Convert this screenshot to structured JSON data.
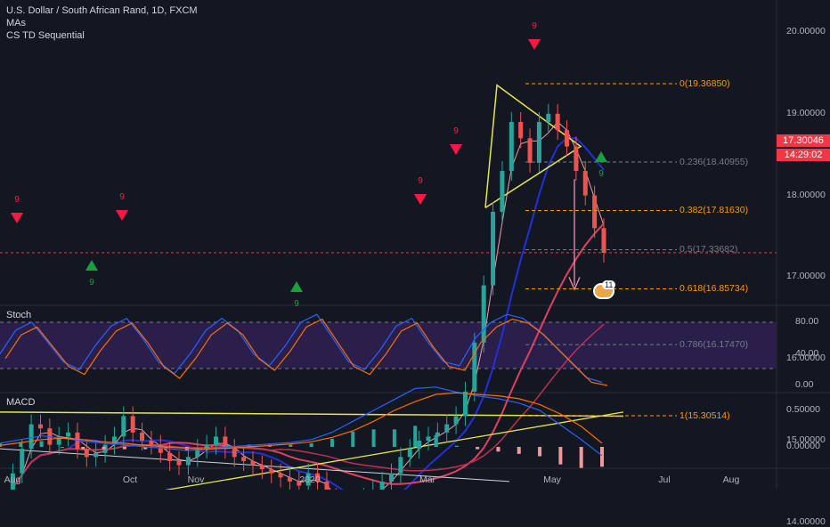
{
  "header": {
    "symbol_title": "U.S. Dollar / South African Rand, 1D, FXCM",
    "indicator_1": "MAs",
    "indicator_2": "CS TD Sequential"
  },
  "current_price": {
    "value": "17.30046",
    "countdown": "14:29:02",
    "color": "#f23645"
  },
  "price_axis": {
    "ticks": [
      "20.00000",
      "19.00000",
      "18.00000",
      "17.00000",
      "16.00000",
      "15.00000",
      "14.00000"
    ],
    "values": [
      20,
      19,
      18,
      17,
      16,
      15,
      14
    ]
  },
  "stoch_pane": {
    "label": "Stoch",
    "ticks": [
      "80.00",
      "40.00",
      "0.00"
    ],
    "values": [
      80,
      40,
      0
    ]
  },
  "macd_pane": {
    "label": "MACD",
    "ticks": [
      "0.50000",
      "0.00000"
    ],
    "values": [
      0.5,
      0
    ]
  },
  "time_axis": {
    "labels": [
      "Aug",
      "Oct",
      "Nov",
      "2020",
      "Mar",
      "May",
      "Jul",
      "Aug"
    ]
  },
  "fib_levels": [
    {
      "label": "0(19.36850)",
      "value": 19.3685,
      "color": "#ff9800"
    },
    {
      "label": "0.236(18.40955)",
      "value": 18.40955,
      "color": "#787b86"
    },
    {
      "label": "0.382(17.81630)",
      "value": 17.8163,
      "color": "#ff9800"
    },
    {
      "label": "0.5(17.33682)",
      "value": 17.33682,
      "color": "#787b86"
    },
    {
      "label": "0.618(16.85734)",
      "value": 16.85734,
      "color": "#ff9800"
    },
    {
      "label": "0.786(16.17470)",
      "value": 16.1747,
      "color": "#787b86"
    },
    {
      "label": "1(15.30514)",
      "value": 15.30514,
      "color": "#ff9800"
    }
  ],
  "td_labels": {
    "nine": "9"
  },
  "events_badge": "11",
  "colors": {
    "up": "#26a69a",
    "down": "#ef5350",
    "stoch_bg": "#2a1e4a",
    "ma_blue": "#2130d8",
    "ma_red": "#e04060"
  },
  "chart_data": {
    "type": "candlestick",
    "title": "U.S. Dollar / South African Rand, 1D, FXCM",
    "xlabel": "",
    "ylabel": "",
    "ylim": [
      13.5,
      20.6
    ],
    "x_ticks": [
      "Aug",
      "Oct",
      "Nov",
      "2020",
      "Mar",
      "May",
      "Jul",
      "Aug"
    ],
    "close_series": [
      14.25,
      14.6,
      14.9,
      15.2,
      15.15,
      14.95,
      15.05,
      15.1,
      14.9,
      14.8,
      14.85,
      14.95,
      15.05,
      15.3,
      15.1,
      15.0,
      14.95,
      14.85,
      14.75,
      14.7,
      14.8,
      14.9,
      14.95,
      15.05,
      14.9,
      14.8,
      14.75,
      14.7,
      14.65,
      14.6,
      14.55,
      14.5,
      14.45,
      14.6,
      14.5,
      14.3,
      14.1,
      14.0,
      14.15,
      14.3,
      14.4,
      14.5,
      14.6,
      14.8,
      14.9,
      15.0,
      15.05,
      15.1,
      15.2,
      15.3,
      15.6,
      16.2,
      16.9,
      17.8,
      18.3,
      18.9,
      18.7,
      18.4,
      18.9,
      19.0,
      18.8,
      18.6,
      18.3,
      18.0,
      17.6,
      17.3
    ],
    "series": [
      {
        "name": "Stoch %K",
        "values": [
          40,
          70,
          80,
          55,
          30,
          20,
          50,
          75,
          85,
          60,
          30,
          15,
          40,
          70,
          85,
          70,
          40,
          25,
          50,
          80,
          90,
          60,
          30,
          20,
          45,
          75,
          85,
          55,
          30,
          25,
          60,
          80,
          90,
          85,
          70,
          50,
          30,
          10,
          4
        ]
      },
      {
        "name": "MACD",
        "values": [
          0.05,
          0.1,
          0.15,
          0.12,
          0.08,
          0.05,
          0.03,
          0.0,
          -0.02,
          -0.05,
          -0.03,
          0.0,
          0.02,
          0.04,
          0.06,
          0.1,
          0.2,
          0.35,
          0.5,
          0.65,
          0.8,
          0.82,
          0.75,
          0.7,
          0.66,
          0.6,
          0.5,
          0.3,
          0.1,
          -0.12
        ]
      },
      {
        "name": "Signal",
        "values": [
          0.02,
          0.06,
          0.1,
          0.12,
          0.1,
          0.07,
          0.05,
          0.02,
          0.0,
          -0.02,
          -0.03,
          -0.02,
          0.0,
          0.02,
          0.04,
          0.07,
          0.13,
          0.22,
          0.35,
          0.5,
          0.62,
          0.72,
          0.74,
          0.72,
          0.7,
          0.66,
          0.58,
          0.45,
          0.28,
          0.05
        ]
      }
    ]
  }
}
